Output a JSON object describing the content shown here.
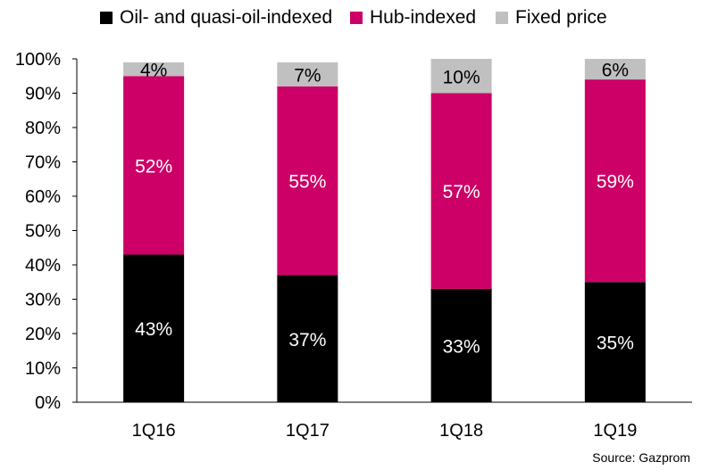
{
  "chart_data": {
    "type": "bar",
    "stacked": true,
    "categories": [
      "1Q16",
      "1Q17",
      "1Q18",
      "1Q19"
    ],
    "series": [
      {
        "name": "Oil- and quasi-oil-indexed",
        "color": "#000000",
        "label_color": "#ffffff",
        "values": [
          43,
          37,
          33,
          35
        ],
        "labels": [
          "43%",
          "37%",
          "33%",
          "35%"
        ]
      },
      {
        "name": "Hub-indexed",
        "color": "#cc0066",
        "label_color": "#ffffff",
        "values": [
          52,
          55,
          57,
          59
        ],
        "labels": [
          "52%",
          "55%",
          "57%",
          "59%"
        ]
      },
      {
        "name": "Fixed price",
        "color": "#c0c0c0",
        "label_color": "#000000",
        "values": [
          4,
          7,
          10,
          6
        ],
        "labels": [
          "4%",
          "7%",
          "10%",
          "6%"
        ]
      }
    ],
    "ylim": [
      0,
      100
    ],
    "yticks": [
      "0%",
      "10%",
      "20%",
      "30%",
      "40%",
      "50%",
      "60%",
      "70%",
      "80%",
      "90%",
      "100%"
    ],
    "grid": false,
    "legend_position": "top",
    "source": "Source: Gazprom"
  }
}
